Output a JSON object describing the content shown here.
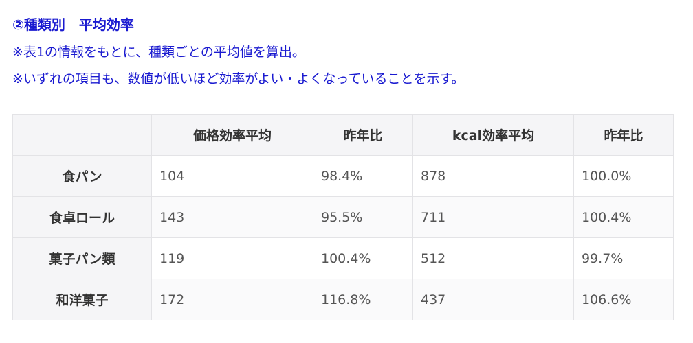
{
  "heading": "②種類別　平均効率",
  "notes": [
    "※表1の情報をもとに、種類ごとの平均値を算出。",
    "※いずれの項目も、数値が低いほど効率がよい・よくなっていることを示す。"
  ],
  "table": {
    "headers": [
      "",
      "価格効率平均",
      "昨年比",
      "kcal効率平均",
      "昨年比"
    ],
    "rows": [
      {
        "label": "食パン",
        "cells": [
          "104",
          "98.4%",
          "878",
          "100.0%"
        ]
      },
      {
        "label": "食卓ロール",
        "cells": [
          "143",
          "95.5%",
          "711",
          "100.4%"
        ]
      },
      {
        "label": "菓子パン類",
        "cells": [
          "119",
          "100.4%",
          "512",
          "99.7%"
        ]
      },
      {
        "label": "和洋菓子",
        "cells": [
          "172",
          "116.8%",
          "437",
          "106.6%"
        ]
      }
    ]
  },
  "colors": {
    "heading": "#1a1ad0",
    "header_bg": "#f5f5f7",
    "border": "#e3e3e6"
  }
}
